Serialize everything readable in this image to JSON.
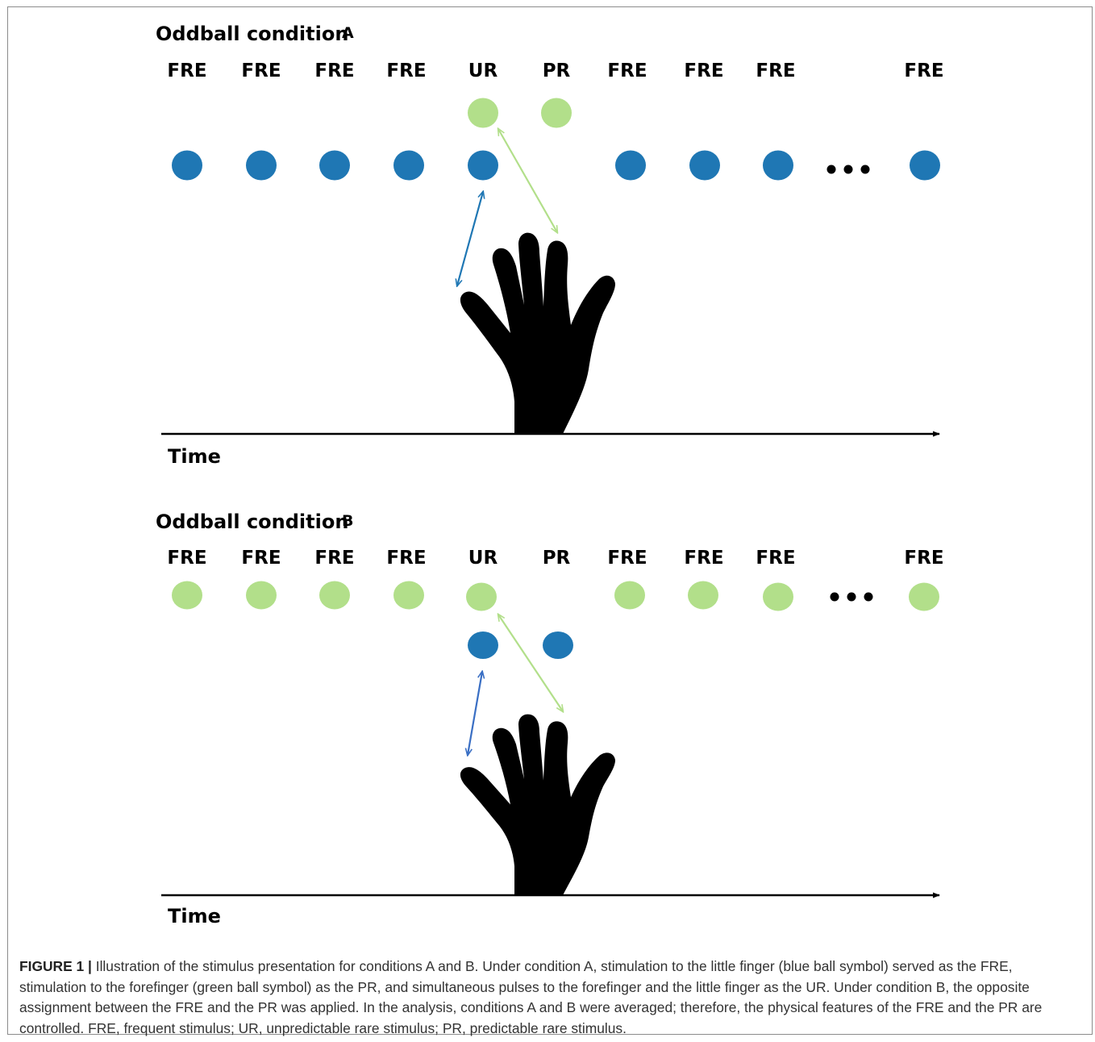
{
  "colors": {
    "blue": "#1f77b4",
    "green": "#b2df8a",
    "hand": "#000000",
    "axis": "#000000",
    "blue_arrow_b": "#3a6fc4"
  },
  "panels": [
    {
      "title": "Oddball condition",
      "letter": "A",
      "labels": [
        "FRE",
        "FRE",
        "FRE",
        "FRE",
        "UR",
        "PR",
        "FRE",
        "FRE",
        "FRE",
        "FRE"
      ],
      "time_label": "Time",
      "main_row_color": "blue",
      "rare_row_color": "green"
    },
    {
      "title": "Oddball condition",
      "letter": "B",
      "labels": [
        "FRE",
        "FRE",
        "FRE",
        "FRE",
        "UR",
        "PR",
        "FRE",
        "FRE",
        "FRE",
        "FRE"
      ],
      "time_label": "Time",
      "main_row_color": "green",
      "rare_row_color": "blue"
    }
  ],
  "caption": {
    "label": "FIGURE 1 |",
    "text": " Illustration of the stimulus presentation for conditions A and B. Under condition A, stimulation to the little finger (blue ball symbol) served as the FRE, stimulation to the forefinger (green ball symbol) as the PR, and simultaneous pulses to the forefinger and the little finger as the UR. Under condition B, the opposite assignment between the FRE and the PR was applied. In the analysis, conditions A and B were averaged; therefore, the physical features of the FRE and the PR are controlled. FRE, frequent stimulus; UR, unpredictable rare stimulus; PR, predictable rare stimulus."
  }
}
